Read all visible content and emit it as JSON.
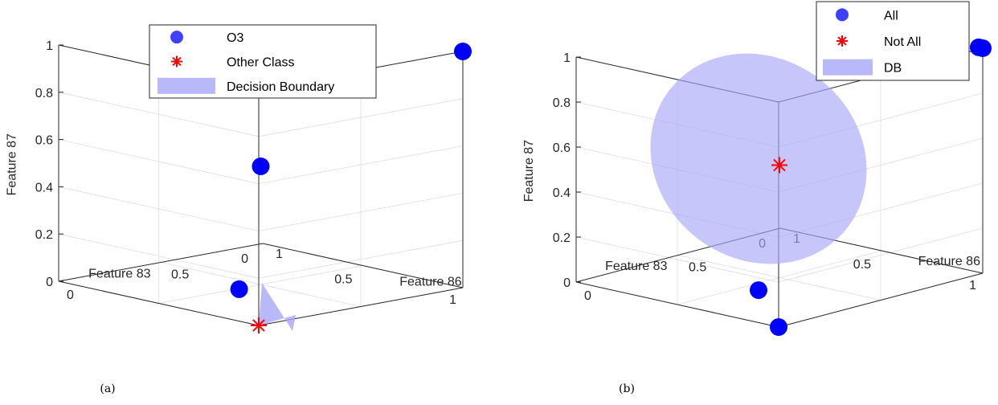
{
  "colors": {
    "marker_blue": "#0000ff",
    "marker_red": "#ff0000",
    "boundary": "#a8a8f8",
    "axis": "#262626",
    "grid": "#dcdcdc"
  },
  "chart_data": [
    {
      "id": "a",
      "type": "scatter",
      "caption": "(a)",
      "xlabel": "Feature 86",
      "ylabel": "Feature 83",
      "zlabel": "Feature 87",
      "xlim": [
        0,
        1
      ],
      "ylim": [
        0,
        1
      ],
      "zlim": [
        0,
        1
      ],
      "ticks": {
        "x": [
          "0",
          "0.5",
          "1"
        ],
        "y": [
          "0",
          "0.5",
          "1"
        ],
        "z": [
          "0",
          "0.2",
          "0.4",
          "0.6",
          "0.8",
          "1"
        ]
      },
      "grid": true,
      "legend_position": "top",
      "legend": [
        {
          "label": "O3",
          "marker": "circle"
        },
        {
          "label": "Other Class",
          "marker": "asterisk"
        },
        {
          "label": "Decision Boundary",
          "marker": "patch"
        }
      ],
      "series": [
        {
          "name": "O3",
          "marker": "circle",
          "points": [
            [
              0,
              1,
              1
            ],
            [
              0.5,
              0.5,
              0.5
            ],
            [
              0.2,
              0.1,
              0.1
            ]
          ]
        },
        {
          "name": "Other Class",
          "marker": "asterisk",
          "points": [
            [
              0,
              0,
              0
            ]
          ]
        }
      ],
      "boundary": {
        "shape": "sliver",
        "extent": [
          0.15,
          0.0,
          0.18
        ]
      }
    },
    {
      "id": "b",
      "type": "scatter",
      "caption": "(b)",
      "xlabel": "Feature 86",
      "ylabel": "Feature 83",
      "zlabel": "Feature 87",
      "xlim": [
        0,
        1
      ],
      "ylim": [
        0,
        1
      ],
      "zlim": [
        0,
        1
      ],
      "ticks": {
        "x": [
          "0",
          "0.5",
          "1"
        ],
        "y": [
          "0",
          "0.5",
          "1"
        ],
        "z": [
          "0",
          "0.2",
          "0.4",
          "0.6",
          "0.8",
          "1"
        ]
      },
      "grid": true,
      "legend_position": "top-right",
      "legend": [
        {
          "label": "All",
          "marker": "circle"
        },
        {
          "label": "Not All",
          "marker": "asterisk"
        },
        {
          "label": "DB",
          "marker": "patch"
        }
      ],
      "series": [
        {
          "name": "All",
          "marker": "circle",
          "points": [
            [
              0,
              0,
              0
            ],
            [
              0.2,
              0.1,
              0.1
            ],
            [
              0,
              1,
              1
            ],
            [
              0.02,
              1,
              1
            ]
          ]
        },
        {
          "name": "Not All",
          "marker": "asterisk",
          "points": [
            [
              0.5,
              0.5,
              0.5
            ]
          ]
        }
      ],
      "boundary": {
        "shape": "ellipsoid",
        "center": [
          0.5,
          0.5,
          0.5
        ]
      }
    }
  ]
}
